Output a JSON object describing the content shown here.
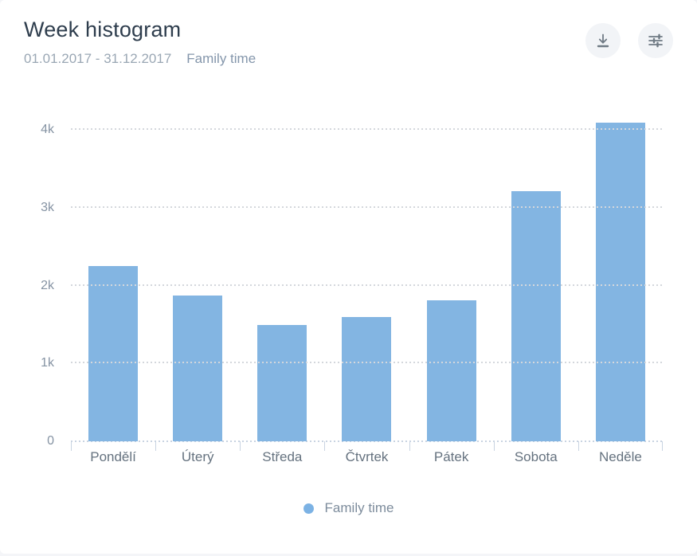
{
  "header": {
    "title": "Week histogram",
    "date_range": "01.01.2017 - 31.12.2017",
    "metric": "Family time"
  },
  "toolbar": {
    "icons": [
      {
        "name": "download-icon",
        "glyph": "arrow-down-to-line"
      },
      {
        "name": "sliders-icon",
        "glyph": "horizontal-sliders"
      }
    ]
  },
  "chart_data": {
    "type": "bar",
    "title": "Week histogram",
    "subtitle": "01.01.2017 - 31.12.2017",
    "series_name": "Family time",
    "categories": [
      "Pondělí",
      "Úterý",
      "Středa",
      "Čtvrtek",
      "Pátek",
      "Sobota",
      "Neděle"
    ],
    "values": [
      2250,
      1870,
      1500,
      1600,
      1810,
      3220,
      4100
    ],
    "yticks": [
      {
        "value": 0,
        "label": "0"
      },
      {
        "value": 1000,
        "label": "1k"
      },
      {
        "value": 2000,
        "label": "2k"
      },
      {
        "value": 3000,
        "label": "3k"
      },
      {
        "value": 4000,
        "label": "4k"
      }
    ],
    "ylim": [
      0,
      4300
    ],
    "xlabel": "",
    "ylabel": "",
    "grid": "horizontal-dotted",
    "legend_position": "bottom-center",
    "bar_color": "#83b5e2"
  },
  "legend": {
    "label": "Family time",
    "dot_color": "#7cb2e4"
  },
  "colors": {
    "page_background": "#f4f5f8",
    "card_background": "#ffffff",
    "title_text": "#2e3d4d",
    "subtitle_text": "#9aa7b4",
    "metric_text": "#8496ab",
    "axis_label_text": "#8593a3",
    "x_label_text": "#65727f",
    "legend_text": "#7d8c9c",
    "gridline": "#d4d7dc",
    "axis_line": "#c9d4e2",
    "icon_stroke": "#6f7a84",
    "icon_button_background": "#f2f4f7"
  }
}
